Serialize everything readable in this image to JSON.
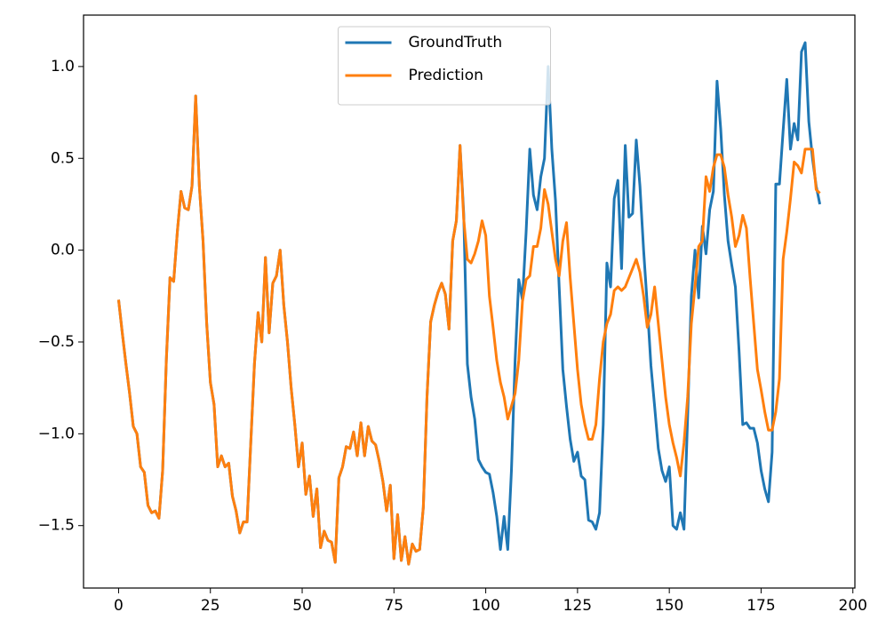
{
  "chart_data": {
    "type": "line",
    "x": [
      0,
      1,
      2,
      3,
      4,
      5,
      6,
      7,
      8,
      9,
      10,
      11,
      12,
      13,
      14,
      15,
      16,
      17,
      18,
      19,
      20,
      21,
      22,
      23,
      24,
      25,
      26,
      27,
      28,
      29,
      30,
      31,
      32,
      33,
      34,
      35,
      36,
      37,
      38,
      39,
      40,
      41,
      42,
      43,
      44,
      45,
      46,
      47,
      48,
      49,
      50,
      51,
      52,
      53,
      54,
      55,
      56,
      57,
      58,
      59,
      60,
      61,
      62,
      63,
      64,
      65,
      66,
      67,
      68,
      69,
      70,
      71,
      72,
      73,
      74,
      75,
      76,
      77,
      78,
      79,
      80,
      81,
      82,
      83,
      84,
      85,
      86,
      87,
      88,
      89,
      90,
      91,
      92,
      93,
      94,
      95,
      96,
      97,
      98,
      99,
      100,
      101,
      102,
      103,
      104,
      105,
      106,
      107,
      108,
      109,
      110,
      111,
      112,
      113,
      114,
      115,
      116,
      117,
      118,
      119,
      120,
      121,
      122,
      123,
      124,
      125,
      126,
      127,
      128,
      129,
      130,
      131,
      132,
      133,
      134,
      135,
      136,
      137,
      138,
      139,
      140,
      141,
      142,
      143,
      144,
      145,
      146,
      147,
      148,
      149,
      150,
      151,
      152,
      153,
      154,
      155,
      156,
      157,
      158,
      159,
      160,
      161,
      162,
      163,
      164,
      165,
      166,
      167,
      168,
      169,
      170,
      171,
      172,
      173,
      174,
      175,
      176,
      177,
      178,
      179,
      180,
      181,
      182,
      183,
      184,
      185,
      186,
      187,
      188,
      189,
      190,
      191
    ],
    "series": [
      {
        "name": "GroundTruth",
        "color": "#1f77b4",
        "values": [
          -0.27,
          -0.45,
          -0.62,
          -0.78,
          -0.96,
          -1.0,
          -1.18,
          -1.21,
          -1.39,
          -1.43,
          -1.42,
          -1.46,
          -1.2,
          -0.6,
          -0.15,
          -0.17,
          0.1,
          0.32,
          0.23,
          0.22,
          0.35,
          0.84,
          0.35,
          0.05,
          -0.4,
          -0.72,
          -0.84,
          -1.18,
          -1.12,
          -1.18,
          -1.16,
          -1.34,
          -1.42,
          -1.54,
          -1.48,
          -1.48,
          -1.05,
          -0.62,
          -0.34,
          -0.5,
          -0.04,
          -0.45,
          -0.18,
          -0.14,
          0.0,
          -0.3,
          -0.5,
          -0.75,
          -0.95,
          -1.18,
          -1.05,
          -1.33,
          -1.23,
          -1.45,
          -1.3,
          -1.62,
          -1.53,
          -1.58,
          -1.59,
          -1.7,
          -1.24,
          -1.18,
          -1.07,
          -1.08,
          -0.99,
          -1.12,
          -0.94,
          -1.12,
          -0.96,
          -1.04,
          -1.06,
          -1.15,
          -1.26,
          -1.42,
          -1.28,
          -1.68,
          -1.44,
          -1.69,
          -1.56,
          -1.71,
          -1.6,
          -1.64,
          -1.63,
          -1.4,
          -0.8,
          -0.39,
          -0.3,
          -0.23,
          -0.18,
          -0.24,
          -0.43,
          0.05,
          0.16,
          0.57,
          0.2,
          -0.62,
          -0.8,
          -0.92,
          -1.14,
          -1.18,
          -1.21,
          -1.22,
          -1.32,
          -1.45,
          -1.63,
          -1.45,
          -1.63,
          -1.2,
          -0.6,
          -0.16,
          -0.27,
          0.1,
          0.55,
          0.3,
          0.22,
          0.4,
          0.5,
          1.0,
          0.55,
          0.27,
          -0.2,
          -0.65,
          -0.85,
          -1.03,
          -1.15,
          -1.1,
          -1.23,
          -1.25,
          -1.47,
          -1.48,
          -1.52,
          -1.43,
          -0.95,
          -0.07,
          -0.2,
          0.28,
          0.38,
          -0.1,
          0.57,
          0.18,
          0.2,
          0.6,
          0.35,
          0.0,
          -0.3,
          -0.63,
          -0.85,
          -1.08,
          -1.2,
          -1.26,
          -1.18,
          -1.5,
          -1.52,
          -1.43,
          -1.52,
          -0.9,
          -0.25,
          0.0,
          -0.26,
          0.13,
          -0.02,
          0.22,
          0.32,
          0.92,
          0.66,
          0.3,
          0.05,
          -0.08,
          -0.2,
          -0.55,
          -0.95,
          -0.94,
          -0.97,
          -0.97,
          -1.05,
          -1.2,
          -1.3,
          -1.37,
          -1.1,
          0.36,
          0.36,
          0.65,
          0.93,
          0.55,
          0.69,
          0.6,
          1.08,
          1.13,
          0.7,
          0.5,
          0.35,
          0.25
        ]
      },
      {
        "name": "Prediction",
        "color": "#ff7f0e",
        "values": [
          -0.27,
          -0.45,
          -0.62,
          -0.78,
          -0.96,
          -1.0,
          -1.18,
          -1.21,
          -1.39,
          -1.43,
          -1.42,
          -1.46,
          -1.2,
          -0.6,
          -0.15,
          -0.17,
          0.1,
          0.32,
          0.23,
          0.22,
          0.35,
          0.84,
          0.35,
          0.05,
          -0.4,
          -0.72,
          -0.84,
          -1.18,
          -1.12,
          -1.18,
          -1.16,
          -1.34,
          -1.42,
          -1.54,
          -1.48,
          -1.48,
          -1.05,
          -0.62,
          -0.34,
          -0.5,
          -0.04,
          -0.45,
          -0.18,
          -0.14,
          0.0,
          -0.3,
          -0.5,
          -0.75,
          -0.95,
          -1.18,
          -1.05,
          -1.33,
          -1.23,
          -1.45,
          -1.3,
          -1.62,
          -1.53,
          -1.58,
          -1.59,
          -1.7,
          -1.24,
          -1.18,
          -1.07,
          -1.08,
          -0.99,
          -1.12,
          -0.94,
          -1.12,
          -0.96,
          -1.04,
          -1.06,
          -1.15,
          -1.26,
          -1.42,
          -1.28,
          -1.68,
          -1.44,
          -1.69,
          -1.56,
          -1.71,
          -1.6,
          -1.64,
          -1.63,
          -1.4,
          -0.8,
          -0.39,
          -0.3,
          -0.23,
          -0.18,
          -0.24,
          -0.43,
          0.05,
          0.16,
          0.57,
          0.17,
          -0.05,
          -0.07,
          -0.02,
          0.05,
          0.16,
          0.08,
          -0.25,
          -0.42,
          -0.6,
          -0.72,
          -0.8,
          -0.92,
          -0.85,
          -0.78,
          -0.6,
          -0.28,
          -0.16,
          -0.14,
          0.02,
          0.02,
          0.12,
          0.33,
          0.25,
          0.1,
          -0.05,
          -0.14,
          0.05,
          0.15,
          -0.15,
          -0.4,
          -0.65,
          -0.84,
          -0.95,
          -1.03,
          -1.03,
          -0.95,
          -0.7,
          -0.5,
          -0.4,
          -0.35,
          -0.22,
          -0.2,
          -0.22,
          -0.2,
          -0.15,
          -0.1,
          -0.05,
          -0.12,
          -0.25,
          -0.42,
          -0.35,
          -0.2,
          -0.4,
          -0.6,
          -0.8,
          -0.95,
          -1.05,
          -1.13,
          -1.23,
          -1.05,
          -0.8,
          -0.4,
          -0.2,
          0.02,
          0.05,
          0.4,
          0.32,
          0.45,
          0.52,
          0.52,
          0.45,
          0.3,
          0.18,
          0.02,
          0.08,
          0.19,
          0.12,
          -0.15,
          -0.4,
          -0.65,
          -0.76,
          -0.88,
          -0.98,
          -0.98,
          -0.88,
          -0.7,
          -0.05,
          0.1,
          0.28,
          0.48,
          0.46,
          0.42,
          0.55,
          0.55,
          0.55,
          0.33,
          0.31
        ]
      }
    ],
    "xlim": [
      -9.55,
      200.55
    ],
    "xticks": [
      0,
      25,
      50,
      75,
      100,
      125,
      150,
      175,
      200
    ],
    "ylim": [
      -1.84,
      1.28
    ],
    "yticks": [
      {
        "value": -1.5,
        "label": "−1.5"
      },
      {
        "value": -1.0,
        "label": "−1.0"
      },
      {
        "value": -0.5,
        "label": "−0.5"
      },
      {
        "value": 0.0,
        "label": "0.0"
      },
      {
        "value": 0.5,
        "label": "0.5"
      },
      {
        "value": 1.0,
        "label": "1.0"
      }
    ],
    "grid": false,
    "legend": "upper center"
  }
}
